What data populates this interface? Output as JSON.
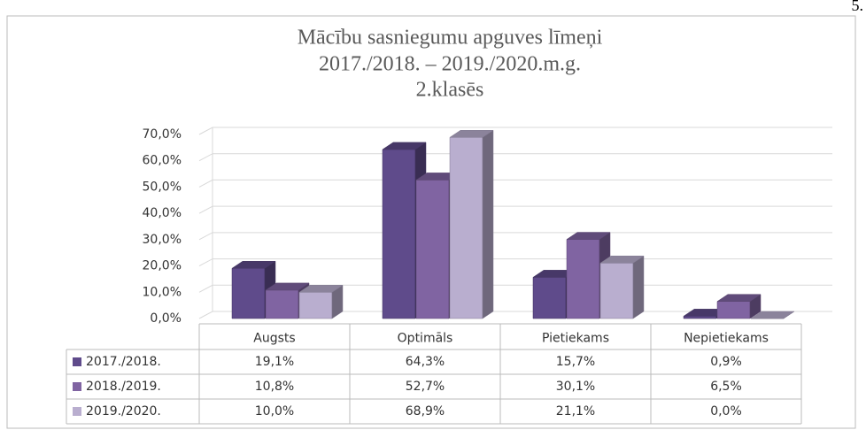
{
  "page_number": "5.",
  "chart_data": {
    "type": "bar3d",
    "title": [
      "Mācību sasniegumu apguves līmeņi",
      "2017./2018. – 2019./2020.m.g.",
      "2.klasēs"
    ],
    "categories": [
      "Augsts",
      "Optimāls",
      "Pietiekams",
      "Nepietiekams"
    ],
    "series": [
      {
        "name": "2017./2018.",
        "color": "#5f4b8b",
        "values": [
          19.1,
          64.3,
          15.7,
          0.9
        ],
        "value_labels": [
          "19,1%",
          "64,3%",
          "15,7%",
          "0,9%"
        ]
      },
      {
        "name": "2018./2019.",
        "color": "#8064a2",
        "values": [
          10.8,
          52.7,
          30.1,
          6.5
        ],
        "value_labels": [
          "10,8%",
          "52,7%",
          "30,1%",
          "6,5%"
        ]
      },
      {
        "name": "2019./2020.",
        "color": "#b9aecf",
        "values": [
          10.0,
          68.9,
          21.1,
          0.0
        ],
        "value_labels": [
          "10,0%",
          "68,9%",
          "21,1%",
          "0,0%"
        ]
      }
    ],
    "ylim": [
      0,
      70
    ],
    "yticks": [
      {
        "value": 0,
        "label": "0,0%"
      },
      {
        "value": 10,
        "label": "10,0%"
      },
      {
        "value": 20,
        "label": "20,0%"
      },
      {
        "value": 30,
        "label": "30,0%"
      },
      {
        "value": 40,
        "label": "40,0%"
      },
      {
        "value": 50,
        "label": "50,0%"
      },
      {
        "value": 60,
        "label": "60,0%"
      },
      {
        "value": 70,
        "label": "70,0%"
      }
    ],
    "grid": true
  }
}
